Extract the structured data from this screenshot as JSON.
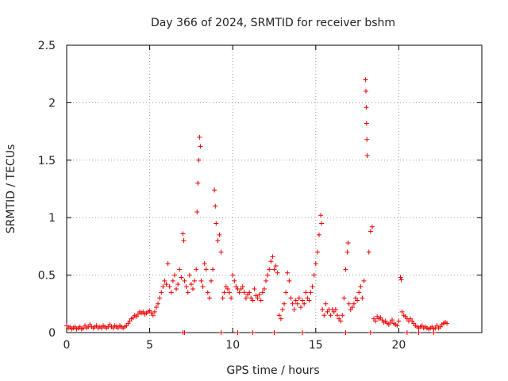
{
  "chart_data": {
    "type": "scatter",
    "title": "Day 366 of 2024, SRMTID for receiver bshm",
    "xlabel": "GPS time / hours",
    "ylabel": "SRMTID / TECUs",
    "xlim": [
      0,
      25
    ],
    "ylim": [
      0,
      2.5
    ],
    "xticks": [
      0,
      5,
      10,
      15,
      20
    ],
    "yticks": [
      0,
      0.5,
      1,
      1.5,
      2,
      2.5
    ],
    "xtick_labels": [
      "0",
      "5",
      "10",
      "15",
      "20"
    ],
    "ytick_labels": [
      "0",
      "0.5",
      "1",
      "1.5",
      "2",
      "2.5"
    ],
    "grid": true,
    "marker": "plus",
    "color": "#ee0000",
    "series": [
      {
        "points": [
          [
            0.0,
            0.06
          ],
          [
            0.1,
            0.04
          ],
          [
            0.2,
            0.05
          ],
          [
            0.3,
            0.03
          ],
          [
            0.4,
            0.04
          ],
          [
            0.5,
            0.05
          ],
          [
            0.6,
            0.03
          ],
          [
            0.7,
            0.04
          ],
          [
            0.8,
            0.05
          ],
          [
            0.9,
            0.03
          ],
          [
            1.0,
            0.04
          ],
          [
            1.1,
            0.06
          ],
          [
            1.2,
            0.04
          ],
          [
            1.3,
            0.05
          ],
          [
            1.4,
            0.07
          ],
          [
            1.5,
            0.05
          ],
          [
            1.6,
            0.04
          ],
          [
            1.7,
            0.05
          ],
          [
            1.8,
            0.06
          ],
          [
            1.9,
            0.04
          ],
          [
            2.0,
            0.05
          ],
          [
            2.1,
            0.04
          ],
          [
            2.2,
            0.06
          ],
          [
            2.3,
            0.05
          ],
          [
            2.4,
            0.04
          ],
          [
            2.5,
            0.05
          ],
          [
            2.6,
            0.07
          ],
          [
            2.7,
            0.05
          ],
          [
            2.8,
            0.04
          ],
          [
            2.9,
            0.06
          ],
          [
            3.0,
            0.05
          ],
          [
            3.1,
            0.04
          ],
          [
            3.2,
            0.06
          ],
          [
            3.3,
            0.05
          ],
          [
            3.4,
            0.04
          ],
          [
            3.5,
            0.05
          ],
          [
            3.6,
            0.06
          ],
          [
            3.7,
            0.08
          ],
          [
            3.8,
            0.1
          ],
          [
            3.9,
            0.12
          ],
          [
            4.0,
            0.13
          ],
          [
            4.1,
            0.15
          ],
          [
            4.2,
            0.14
          ],
          [
            4.3,
            0.16
          ],
          [
            4.4,
            0.18
          ],
          [
            4.5,
            0.17
          ],
          [
            4.6,
            0.18
          ],
          [
            4.7,
            0.16
          ],
          [
            4.8,
            0.17
          ],
          [
            4.9,
            0.18
          ],
          [
            5.0,
            0.19
          ],
          [
            5.1,
            0.17
          ],
          [
            5.2,
            0.15
          ],
          [
            5.3,
            0.18
          ],
          [
            5.4,
            0.22
          ],
          [
            5.5,
            0.25
          ],
          [
            5.6,
            0.3
          ],
          [
            5.7,
            0.35
          ],
          [
            5.8,
            0.4
          ],
          [
            5.9,
            0.45
          ],
          [
            6.0,
            0.42
          ],
          [
            6.1,
            0.6
          ],
          [
            6.2,
            0.4
          ],
          [
            6.3,
            0.35
          ],
          [
            6.4,
            0.45
          ],
          [
            6.5,
            0.5
          ],
          [
            6.6,
            0.38
          ],
          [
            6.7,
            0.42
          ],
          [
            6.8,
            0.55
          ],
          [
            6.9,
            0.48
          ],
          [
            7.0,
            0.86
          ],
          [
            7.05,
            0.8
          ],
          [
            7.1,
            0.45
          ],
          [
            7.2,
            0.4
          ],
          [
            7.3,
            0.35
          ],
          [
            7.4,
            0.5
          ],
          [
            7.5,
            0.42
          ],
          [
            7.6,
            0.38
          ],
          [
            7.7,
            0.45
          ],
          [
            7.8,
            0.55
          ],
          [
            7.85,
            1.05
          ],
          [
            7.9,
            1.3
          ],
          [
            7.95,
            1.5
          ],
          [
            8.0,
            1.7
          ],
          [
            8.05,
            1.62
          ],
          [
            8.1,
            0.45
          ],
          [
            8.2,
            0.4
          ],
          [
            8.3,
            0.6
          ],
          [
            8.4,
            0.55
          ],
          [
            8.5,
            0.35
          ],
          [
            8.6,
            0.3
          ],
          [
            8.7,
            0.45
          ],
          [
            8.8,
            0.55
          ],
          [
            8.9,
            1.24
          ],
          [
            8.95,
            1.1
          ],
          [
            9.0,
            0.95
          ],
          [
            9.1,
            0.8
          ],
          [
            9.2,
            0.85
          ],
          [
            9.3,
            0.7
          ],
          [
            9.4,
            0.3
          ],
          [
            9.5,
            0.35
          ],
          [
            9.6,
            0.4
          ],
          [
            9.7,
            0.38
          ],
          [
            9.8,
            0.35
          ],
          [
            9.9,
            0.3
          ],
          [
            10.0,
            0.5
          ],
          [
            10.1,
            0.45
          ],
          [
            10.2,
            0.4
          ],
          [
            10.3,
            0.38
          ],
          [
            10.4,
            0.35
          ],
          [
            10.5,
            0.38
          ],
          [
            10.6,
            0.4
          ],
          [
            10.7,
            0.35
          ],
          [
            10.8,
            0.3
          ],
          [
            10.9,
            0.33
          ],
          [
            11.0,
            0.35
          ],
          [
            11.1,
            0.3
          ],
          [
            11.2,
            0.28
          ],
          [
            11.3,
            0.38
          ],
          [
            11.4,
            0.32
          ],
          [
            11.5,
            0.3
          ],
          [
            11.6,
            0.33
          ],
          [
            11.7,
            0.28
          ],
          [
            11.8,
            0.35
          ],
          [
            11.9,
            0.38
          ],
          [
            12.0,
            0.45
          ],
          [
            12.1,
            0.5
          ],
          [
            12.2,
            0.55
          ],
          [
            12.3,
            0.62
          ],
          [
            12.4,
            0.66
          ],
          [
            12.5,
            0.55
          ],
          [
            12.6,
            0.58
          ],
          [
            12.7,
            0.52
          ],
          [
            12.8,
            0.15
          ],
          [
            12.9,
            0.12
          ],
          [
            13.0,
            0.2
          ],
          [
            13.1,
            0.25
          ],
          [
            13.2,
            0.35
          ],
          [
            13.3,
            0.52
          ],
          [
            13.4,
            0.45
          ],
          [
            13.5,
            0.3
          ],
          [
            13.6,
            0.25
          ],
          [
            13.7,
            0.2
          ],
          [
            13.8,
            0.28
          ],
          [
            13.9,
            0.25
          ],
          [
            14.0,
            0.3
          ],
          [
            14.1,
            0.22
          ],
          [
            14.2,
            0.28
          ],
          [
            14.3,
            0.25
          ],
          [
            14.4,
            0.35
          ],
          [
            14.5,
            0.3
          ],
          [
            14.6,
            0.28
          ],
          [
            14.7,
            0.35
          ],
          [
            14.8,
            0.4
          ],
          [
            14.9,
            0.5
          ],
          [
            15.0,
            0.6
          ],
          [
            15.1,
            0.7
          ],
          [
            15.2,
            0.85
          ],
          [
            15.3,
            1.02
          ],
          [
            15.35,
            0.95
          ],
          [
            15.4,
            0.2
          ],
          [
            15.5,
            0.15
          ],
          [
            15.6,
            0.25
          ],
          [
            15.7,
            0.18
          ],
          [
            15.8,
            0.2
          ],
          [
            15.9,
            0.15
          ],
          [
            16.0,
            0.2
          ],
          [
            16.1,
            0.18
          ],
          [
            16.2,
            0.2
          ],
          [
            16.3,
            0.15
          ],
          [
            16.4,
            0.12
          ],
          [
            16.5,
            0.1
          ],
          [
            16.6,
            0.15
          ],
          [
            16.7,
            0.3
          ],
          [
            16.8,
            0.55
          ],
          [
            16.9,
            0.7
          ],
          [
            16.95,
            0.78
          ],
          [
            17.0,
            0.25
          ],
          [
            17.1,
            0.2
          ],
          [
            17.2,
            0.22
          ],
          [
            17.3,
            0.25
          ],
          [
            17.4,
            0.3
          ],
          [
            17.5,
            0.28
          ],
          [
            17.6,
            0.35
          ],
          [
            17.7,
            0.4
          ],
          [
            17.8,
            0.3
          ],
          [
            17.9,
            0.45
          ],
          [
            18.0,
            2.2
          ],
          [
            18.02,
            2.1
          ],
          [
            18.04,
            1.96
          ],
          [
            18.06,
            1.82
          ],
          [
            18.08,
            1.68
          ],
          [
            18.1,
            1.54
          ],
          [
            18.2,
            0.7
          ],
          [
            18.3,
            0.88
          ],
          [
            18.4,
            0.92
          ],
          [
            18.5,
            0.12
          ],
          [
            18.6,
            0.1
          ],
          [
            18.7,
            0.14
          ],
          [
            18.8,
            0.12
          ],
          [
            18.9,
            0.13
          ],
          [
            19.0,
            0.11
          ],
          [
            19.1,
            0.09
          ],
          [
            19.2,
            0.1
          ],
          [
            19.3,
            0.08
          ],
          [
            19.4,
            0.07
          ],
          [
            19.5,
            0.09
          ],
          [
            19.6,
            0.11
          ],
          [
            19.7,
            0.08
          ],
          [
            19.8,
            0.07
          ],
          [
            19.9,
            0.06
          ],
          [
            20.0,
            0.1
          ],
          [
            20.1,
            0.48
          ],
          [
            20.15,
            0.46
          ],
          [
            20.2,
            0.18
          ],
          [
            20.3,
            0.15
          ],
          [
            20.4,
            0.14
          ],
          [
            20.5,
            0.12
          ],
          [
            20.6,
            0.1
          ],
          [
            20.7,
            0.12
          ],
          [
            20.8,
            0.1
          ],
          [
            20.9,
            0.08
          ],
          [
            21.0,
            0.06
          ],
          [
            21.1,
            0.05
          ],
          [
            21.2,
            0.04
          ],
          [
            21.3,
            0.05
          ],
          [
            21.4,
            0.06
          ],
          [
            21.5,
            0.04
          ],
          [
            21.6,
            0.05
          ],
          [
            21.7,
            0.04
          ],
          [
            21.8,
            0.03
          ],
          [
            21.9,
            0.04
          ],
          [
            22.0,
            0.05
          ],
          [
            22.1,
            0.03
          ],
          [
            22.2,
            0.04
          ],
          [
            22.3,
            0.06
          ],
          [
            22.4,
            0.04
          ],
          [
            22.5,
            0.05
          ],
          [
            22.6,
            0.07
          ],
          [
            22.7,
            0.08
          ],
          [
            22.8,
            0.09
          ],
          [
            22.9,
            0.08
          ],
          [
            7.0,
            0.0
          ],
          [
            7.1,
            0.0
          ],
          [
            9.3,
            0.0
          ],
          [
            10.3,
            0.0
          ],
          [
            11.2,
            0.0
          ],
          [
            12.5,
            0.0
          ],
          [
            14.2,
            0.0
          ],
          [
            16.8,
            0.0
          ],
          [
            18.3,
            0.0
          ],
          [
            20.5,
            0.0
          ],
          [
            21.2,
            0.0
          ],
          [
            22.1,
            0.0
          ]
        ]
      }
    ]
  }
}
